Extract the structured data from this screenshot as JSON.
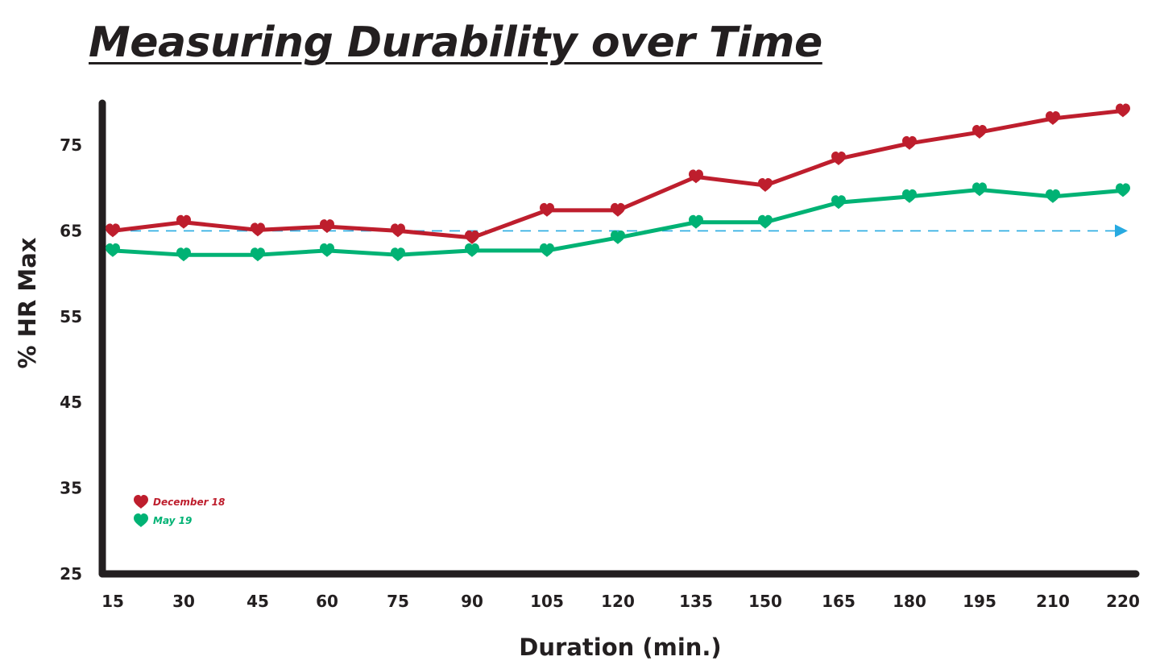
{
  "title": "Measuring Durability over Time",
  "chart_data": {
    "type": "line",
    "title": "Measuring Durability over Time",
    "xlabel": "Duration (min.)",
    "ylabel": "% HR Max",
    "categories": [
      "15",
      "30",
      "45",
      "60",
      "75",
      "90",
      "105",
      "120",
      "135",
      "150",
      "165",
      "180",
      "195",
      "210",
      "220"
    ],
    "y_ticks": [
      "75",
      "65",
      "55",
      "45",
      "35",
      "25"
    ],
    "ylim": [
      25,
      80
    ],
    "grid": false,
    "legend_position": "bottom-left",
    "series": [
      {
        "name": "December 18",
        "color": "#be1e2d",
        "values": [
          65,
          66,
          65.1,
          65.5,
          65,
          64.2,
          67.4,
          67.4,
          71.3,
          70.3,
          73.4,
          75.2,
          76.5,
          78.1,
          79
        ]
      },
      {
        "name": "May 19",
        "color": "#00b274",
        "values": [
          62.7,
          62.2,
          62.2,
          62.7,
          62.2,
          62.7,
          62.7,
          64.2,
          66,
          66,
          68.3,
          69,
          69.8,
          69,
          69.7
        ]
      }
    ],
    "reference_line": {
      "value": 65,
      "color": "#27aae1",
      "style": "dashed"
    }
  }
}
